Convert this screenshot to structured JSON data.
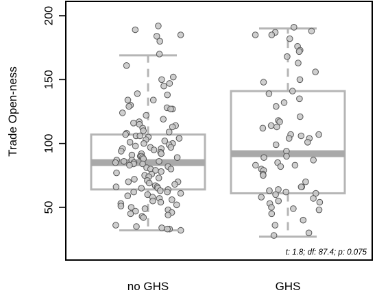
{
  "chart_data": {
    "type": "boxplot",
    "ylabel": "Trade Open-ness",
    "ylim": [
      10,
      210
    ],
    "yticks": [
      50,
      100,
      150,
      200
    ],
    "categories": [
      "no GHS",
      "GHS"
    ],
    "boxes": [
      {
        "category": "no GHS",
        "whisker_low": 32,
        "q1": 64,
        "median": 85,
        "q3": 107,
        "whisker_high": 169,
        "points": [
          192,
          189,
          184,
          185,
          180,
          170,
          161,
          152,
          150,
          147,
          145,
          139,
          138,
          134,
          134,
          130,
          129,
          128,
          127,
          127,
          124,
          122,
          119,
          117,
          116,
          115,
          114,
          113,
          112,
          110,
          109,
          108,
          107,
          106,
          106,
          105,
          104,
          103,
          102,
          101,
          100,
          100,
          99,
          98,
          97,
          97,
          96,
          96,
          95,
          94,
          93,
          92,
          92,
          91,
          90,
          90,
          89,
          89,
          88,
          87,
          87,
          86,
          86,
          85,
          85,
          84,
          84,
          83,
          82,
          81,
          80,
          80,
          79,
          78,
          77,
          76,
          75,
          74,
          73,
          72,
          71,
          70,
          70,
          69,
          68,
          67,
          66,
          66,
          65,
          65,
          64,
          63,
          62,
          62,
          61,
          60,
          59,
          58,
          57,
          56,
          55,
          54,
          53,
          52,
          51,
          50,
          49,
          48,
          47,
          46,
          45,
          44,
          43,
          42,
          36,
          35,
          34,
          33,
          33,
          32
        ]
      },
      {
        "category": "GHS",
        "whisker_low": 27,
        "q1": 61,
        "median": 92,
        "q3": 141,
        "whisker_high": 190,
        "points": [
          191,
          188,
          187,
          185,
          185,
          182,
          176,
          173,
          172,
          168,
          163,
          156,
          150,
          148,
          141,
          139,
          135,
          132,
          129,
          121,
          118,
          117,
          114,
          113,
          112,
          107,
          107,
          106,
          104,
          104,
          101,
          99,
          94,
          90,
          89,
          87,
          85,
          83,
          83,
          82,
          80,
          79,
          76,
          75,
          70,
          66,
          66,
          64,
          63,
          62,
          61,
          60,
          58,
          57,
          55,
          54,
          53,
          50,
          49,
          48,
          45,
          40,
          36,
          30,
          28
        ]
      }
    ],
    "annotation": "t: 1.8; df: 87.4; p: 0.075",
    "colors": {
      "box": "#b5b5b5",
      "median": "#a9a9a9",
      "point_fill": "#c7c7c7",
      "point_stroke": "#555555"
    }
  }
}
